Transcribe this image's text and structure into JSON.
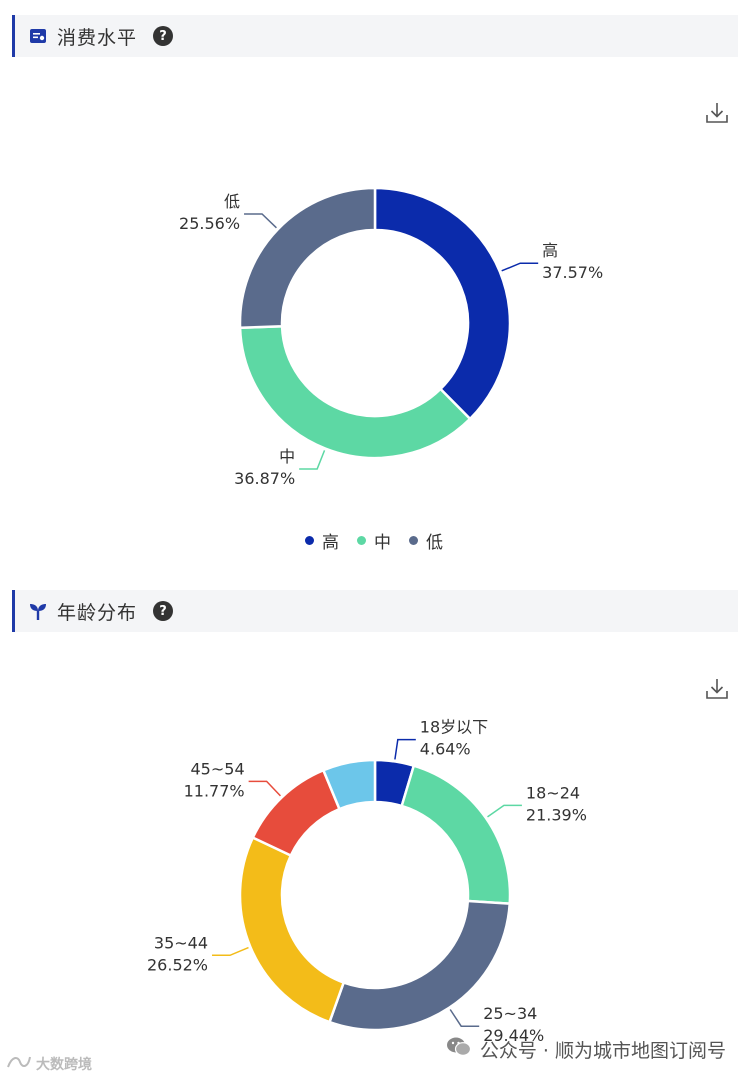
{
  "sections": [
    {
      "title": "消费水平",
      "help": "?"
    },
    {
      "title": "年龄分布",
      "help": "?"
    }
  ],
  "chart_data": [
    {
      "type": "pie",
      "donut": true,
      "categories": [
        "高",
        "中",
        "低"
      ],
      "values": [
        37.57,
        36.87,
        25.56
      ],
      "labels": [
        "37.57%",
        "36.87%",
        "25.56%"
      ],
      "colors": [
        "#0b2bab",
        "#5dd8a4",
        "#5a6b8c"
      ],
      "legend": {
        "placement": "bottom",
        "entries": [
          "高",
          "中",
          "低"
        ]
      }
    },
    {
      "type": "pie",
      "donut": true,
      "categories": [
        "18岁以下",
        "18~24",
        "25~34",
        "35~44",
        "45~54",
        ""
      ],
      "values": [
        4.64,
        21.39,
        29.44,
        26.52,
        11.77,
        6.24
      ],
      "labels": [
        "4.64%",
        "21.39%",
        "29.44%",
        "26.52%",
        "11.77%",
        ""
      ],
      "colors": [
        "#0b2bab",
        "#5dd8a4",
        "#5a6b8c",
        "#f3bc19",
        "#e74c3c",
        "#6cc6ea"
      ]
    }
  ],
  "watermarks": {
    "left": "大数跨境",
    "right": "公众号 · 顺为城市地图订阅号"
  }
}
